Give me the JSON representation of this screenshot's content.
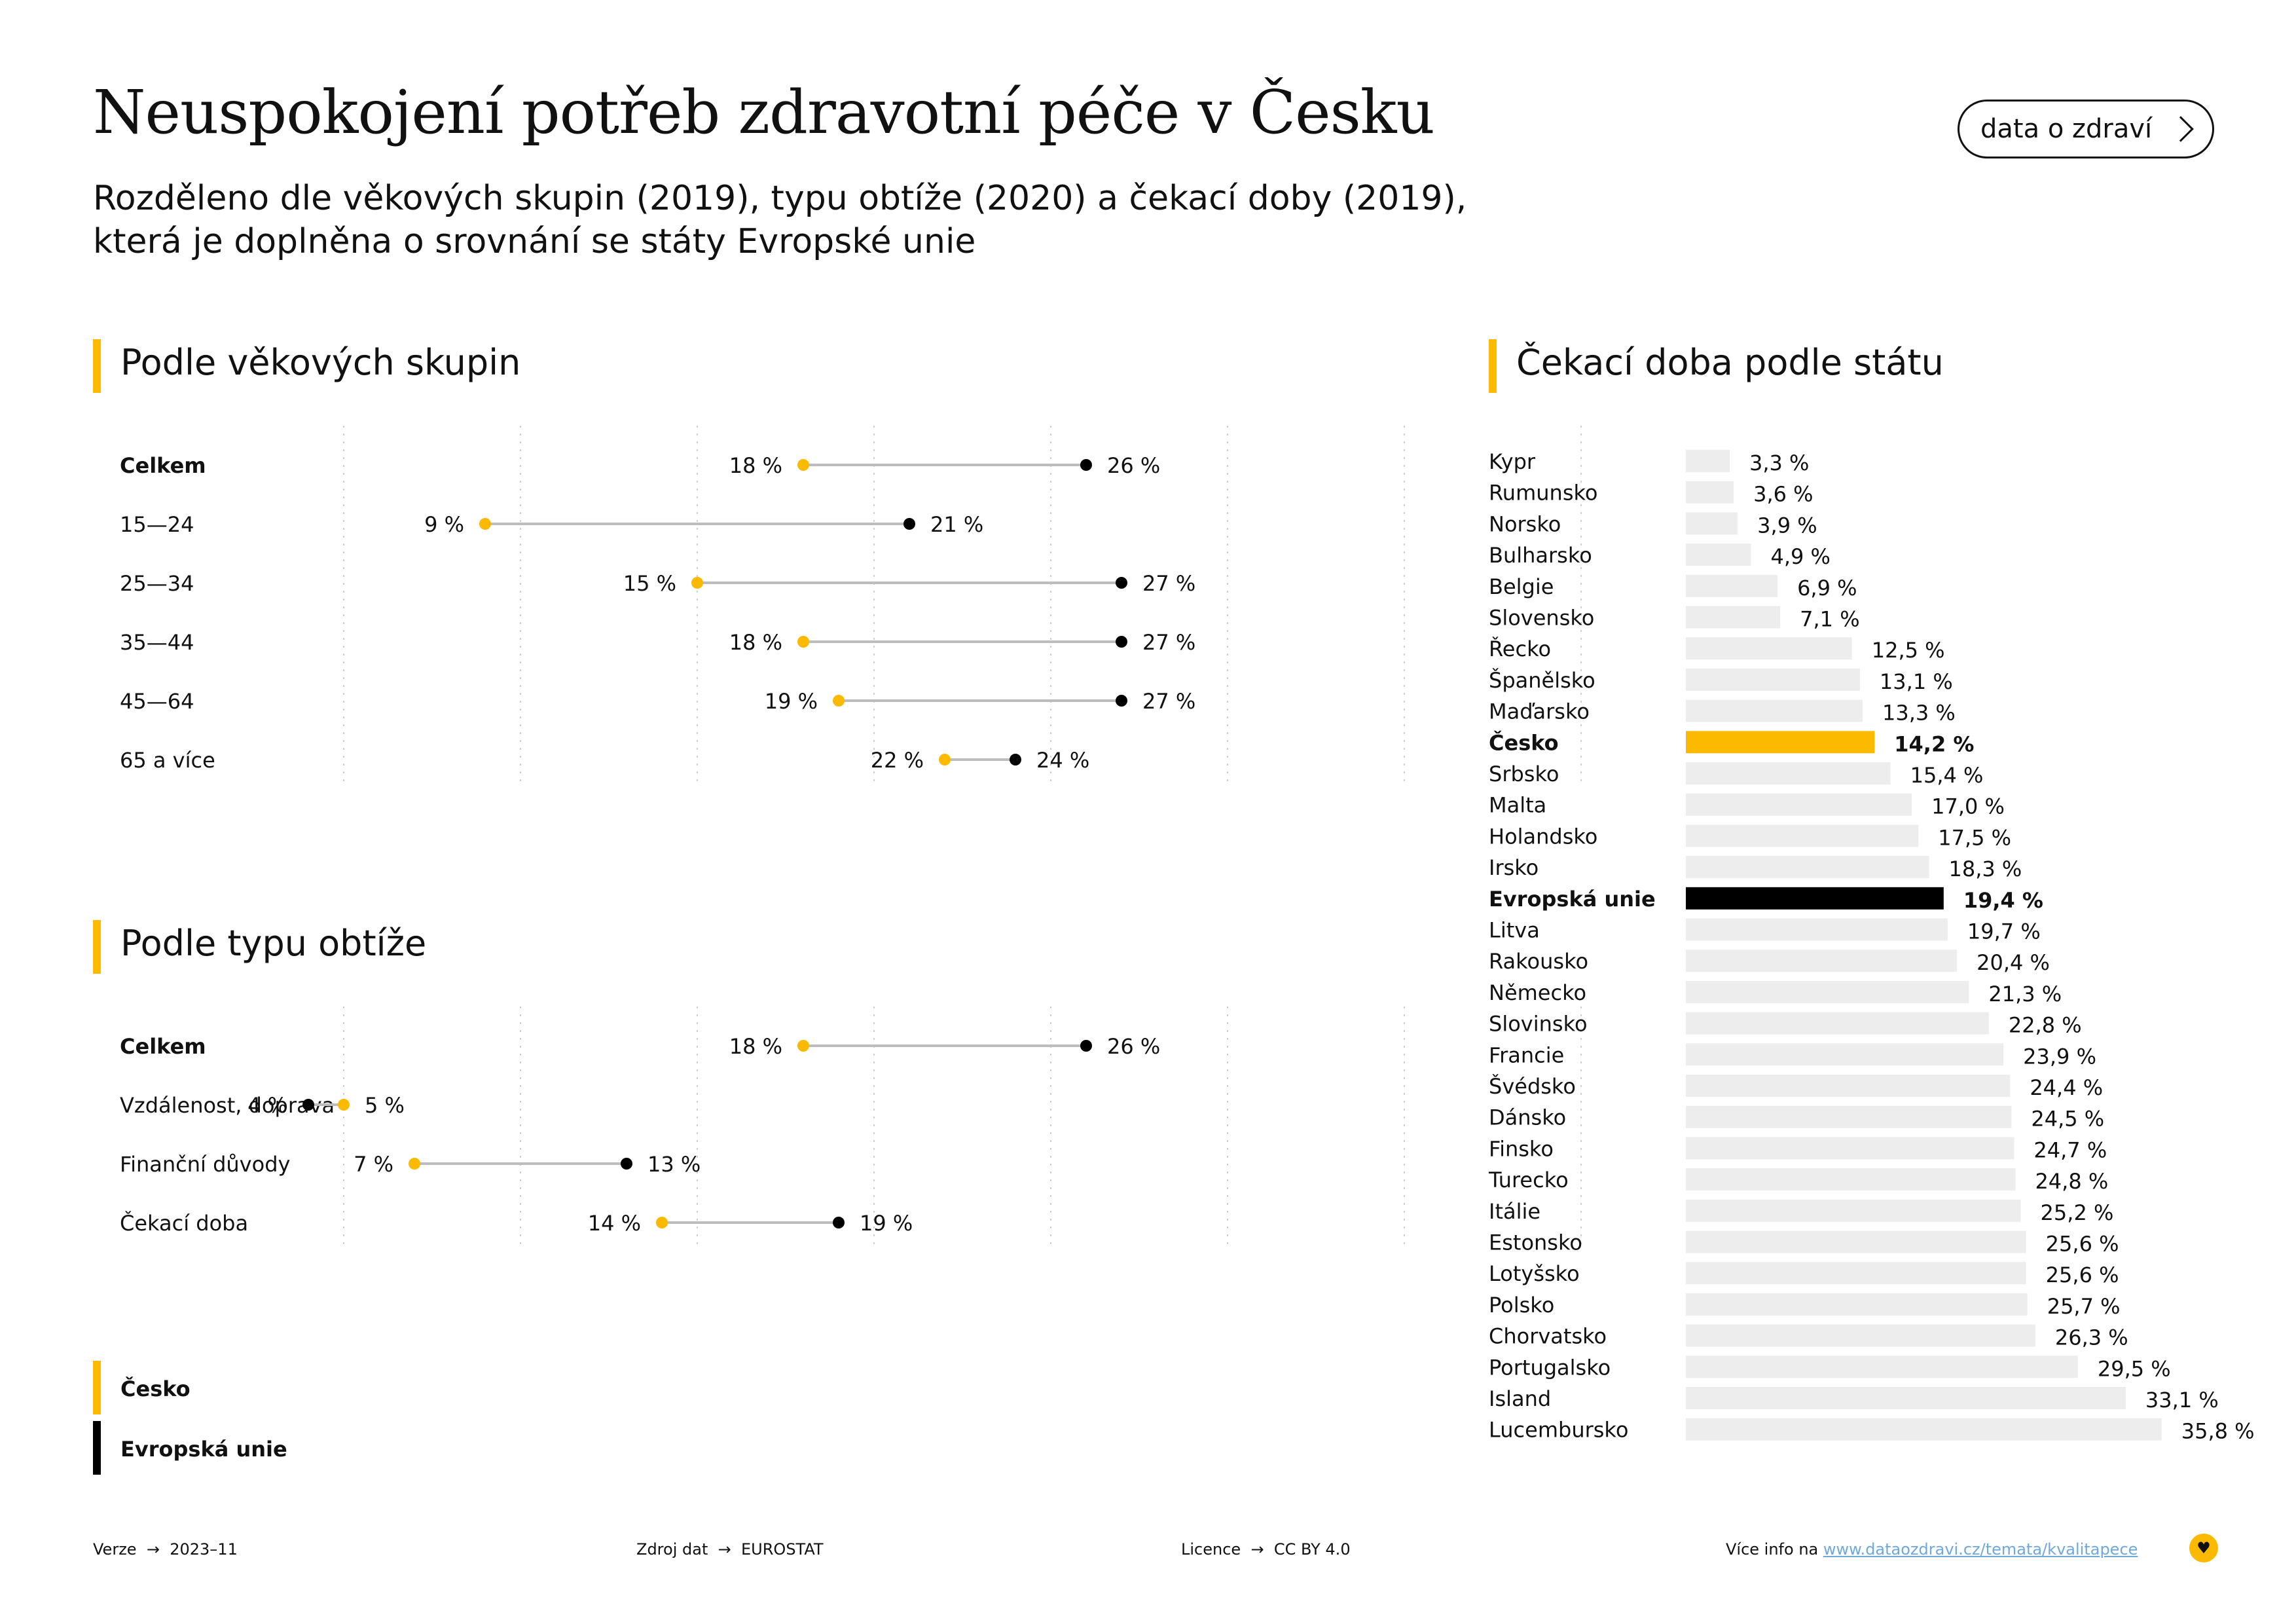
{
  "header": {
    "title": "Neuspokojení potřeb zdravotní péče v Česku",
    "subtitle_line1": "Rozděleno dle věkových skupin (2019), typu obtíže (2020) a čekací doby (2019),",
    "subtitle_line2": "která je doplněna o srovnání se státy Evropské unie",
    "cta_label": "data o zdraví"
  },
  "colors": {
    "czech": "#FBBA00",
    "eu": "#000000",
    "bar_default": "#EDEDED",
    "connector": "#BDBDBD"
  },
  "legend": {
    "czech_label": "Česko",
    "eu_label": "Evropská unie"
  },
  "chart_data": [
    {
      "type": "dumbbell",
      "title": "Podle věkových skupin",
      "xlim": [
        0,
        40
      ],
      "categories": [
        "Celkem",
        "15—24",
        "25—34",
        "35—44",
        "45—64",
        "65 a více"
      ],
      "bold_categories": [
        "Celkem"
      ],
      "series": [
        {
          "name": "Česko",
          "values": [
            18,
            9,
            15,
            18,
            19,
            22
          ],
          "labels": [
            "18 %",
            "9 %",
            "15 %",
            "18 %",
            "19 %",
            "22 %"
          ]
        },
        {
          "name": "Evropská unie",
          "values": [
            26,
            21,
            27,
            27,
            27,
            24
          ],
          "labels": [
            "26 %",
            "21 %",
            "27 %",
            "27 %",
            "27 %",
            "24 %"
          ]
        }
      ]
    },
    {
      "type": "dumbbell",
      "title": "Podle typu obtíže",
      "xlim": [
        0,
        40
      ],
      "categories": [
        "Celkem",
        "Vzdálenost, doprava",
        "Finanční důvody",
        "Čekací doba"
      ],
      "bold_categories": [
        "Celkem"
      ],
      "series": [
        {
          "name": "Česko",
          "values": [
            18,
            5,
            7,
            14
          ],
          "labels": [
            "18 %",
            "5 %",
            "7 %",
            "14 %"
          ]
        },
        {
          "name": "Evropská unie",
          "values": [
            26,
            4,
            13,
            19
          ],
          "labels": [
            "26 %",
            "4 %",
            "13 %",
            "19 %"
          ]
        }
      ]
    },
    {
      "type": "bar",
      "title": "Čekací doba podle státu",
      "xlim": [
        0,
        40
      ],
      "categories": [
        "Kypr",
        "Rumunsko",
        "Norsko",
        "Bulharsko",
        "Belgie",
        "Slovensko",
        "Řecko",
        "Španělsko",
        "Maďarsko",
        "Česko",
        "Srbsko",
        "Malta",
        "Holandsko",
        "Irsko",
        "Evropská unie",
        "Litva",
        "Rakousko",
        "Německo",
        "Slovinsko",
        "Francie",
        "Švédsko",
        "Dánsko",
        "Finsko",
        "Turecko",
        "Itálie",
        "Estonsko",
        "Lotyšsko",
        "Polsko",
        "Chorvatsko",
        "Portugalsko",
        "Island",
        "Lucembursko"
      ],
      "values": [
        3.3,
        3.6,
        3.9,
        4.9,
        6.9,
        7.1,
        12.5,
        13.1,
        13.3,
        14.2,
        15.4,
        17.0,
        17.5,
        18.3,
        19.4,
        19.7,
        20.4,
        21.3,
        22.8,
        23.9,
        24.4,
        24.5,
        24.7,
        24.8,
        25.2,
        25.6,
        25.6,
        25.7,
        26.3,
        29.5,
        33.1,
        35.8
      ],
      "labels": [
        "3,3 %",
        "3,6 %",
        "3,9 %",
        "4,9 %",
        "6,9 %",
        "7,1 %",
        "12,5 %",
        "13,1 %",
        "13,3 %",
        "14,2 %",
        "15,4 %",
        "17,0 %",
        "17,5 %",
        "18,3 %",
        "19,4 %",
        "19,7 %",
        "20,4 %",
        "21,3 %",
        "22,8 %",
        "23,9 %",
        "24,4 %",
        "24,5 %",
        "24,7 %",
        "24,8 %",
        "25,2 %",
        "25,6 %",
        "25,6 %",
        "25,7 %",
        "26,3 %",
        "29,5 %",
        "33,1 %",
        "35,8 %"
      ],
      "highlights": {
        "Česko": "czech",
        "Evropská unie": "eu"
      }
    }
  ],
  "footer": {
    "version_label": "Verze",
    "version_value": "2023–11",
    "source_label": "Zdroj dat",
    "source_value": "EUROSTAT",
    "license_label": "Licence",
    "license_value": "CC BY 4.0",
    "more_info_label": "Více info na",
    "more_info_link": "www.dataozdravi.cz/temata/kvalitapece"
  }
}
